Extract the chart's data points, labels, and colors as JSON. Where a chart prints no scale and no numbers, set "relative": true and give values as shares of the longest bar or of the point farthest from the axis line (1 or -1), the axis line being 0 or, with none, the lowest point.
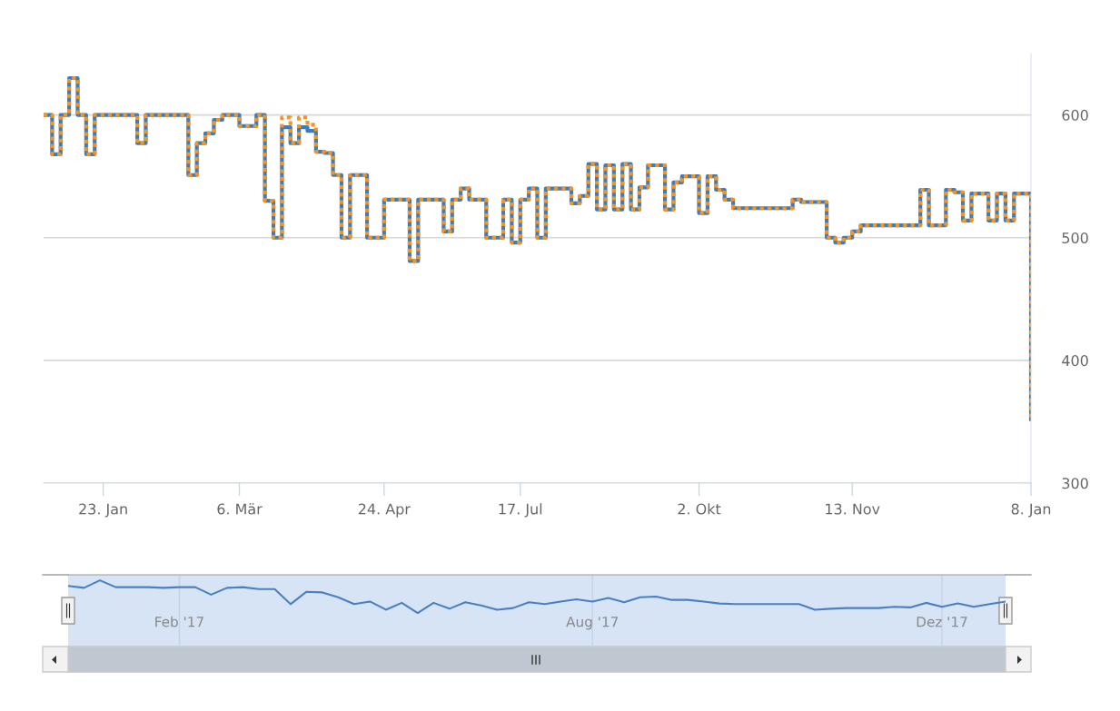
{
  "chart_data": [
    {
      "type": "step",
      "ylim": [
        300,
        650
      ],
      "yticks": [
        300,
        400,
        500,
        600
      ],
      "grid": "y",
      "categories": [
        null,
        null,
        null,
        null,
        null,
        null,
        null,
        "23. Jan",
        null,
        null,
        null,
        null,
        null,
        null,
        null,
        null,
        null,
        null,
        null,
        null,
        null,
        null,
        null,
        "6. Mär",
        null,
        null,
        null,
        null,
        null,
        null,
        null,
        null,
        null,
        null,
        null,
        null,
        null,
        null,
        null,
        null,
        "24. Apr",
        null,
        null,
        null,
        null,
        null,
        null,
        null,
        null,
        null,
        null,
        null,
        null,
        null,
        null,
        null,
        "17. Jul",
        null,
        null,
        null,
        null,
        null,
        null,
        null,
        null,
        null,
        null,
        null,
        null,
        null,
        null,
        null,
        null,
        null,
        null,
        null,
        null,
        "2. Okt",
        null,
        null,
        null,
        null,
        null,
        null,
        null,
        null,
        null,
        null,
        null,
        null,
        null,
        null,
        null,
        null,
        null,
        "13. Nov",
        null,
        null,
        null,
        null,
        null,
        null,
        null,
        null,
        null,
        null,
        null,
        null,
        null,
        null,
        null,
        null,
        null,
        null,
        null,
        null,
        "8. Jan"
      ],
      "series": [
        {
          "color": "#3a7ebf",
          "line_style": "solid",
          "values": [
            600,
            568,
            600,
            630,
            600,
            568,
            600,
            600,
            600,
            600,
            600,
            577,
            600,
            600,
            600,
            600,
            600,
            551,
            577,
            585,
            596,
            600,
            600,
            591,
            591,
            600,
            530,
            500,
            590,
            577,
            590,
            587,
            570,
            569,
            551,
            500,
            551,
            551,
            500,
            500,
            531,
            531,
            531,
            481,
            531,
            531,
            531,
            505,
            531,
            540,
            531,
            531,
            500,
            500,
            531,
            496,
            531,
            540,
            500,
            540,
            540,
            540,
            528,
            534,
            560,
            523,
            559,
            523,
            560,
            523,
            541,
            559,
            559,
            523,
            545,
            550,
            550,
            520,
            550,
            539,
            531,
            524,
            524,
            524,
            524,
            524,
            524,
            524,
            531,
            529,
            529,
            529,
            500,
            496,
            500,
            505,
            510,
            510,
            510,
            510,
            510,
            510,
            510,
            539,
            510,
            510,
            539,
            537,
            514,
            536,
            536,
            514,
            536,
            514,
            536,
            536,
            352
          ]
        },
        {
          "color": "#f7931e",
          "line_style": "dotted",
          "values": [
            600,
            568,
            600,
            630,
            600,
            568,
            600,
            600,
            600,
            600,
            600,
            577,
            600,
            600,
            600,
            600,
            600,
            551,
            577,
            585,
            596,
            600,
            600,
            591,
            591,
            600,
            530,
            500,
            598,
            577,
            598,
            592,
            570,
            569,
            551,
            500,
            551,
            551,
            500,
            500,
            531,
            531,
            531,
            481,
            531,
            531,
            531,
            505,
            531,
            540,
            531,
            531,
            500,
            500,
            531,
            496,
            531,
            540,
            500,
            540,
            540,
            540,
            528,
            534,
            560,
            523,
            559,
            523,
            560,
            523,
            541,
            559,
            559,
            523,
            545,
            550,
            550,
            520,
            550,
            539,
            531,
            524,
            524,
            524,
            524,
            524,
            524,
            524,
            531,
            529,
            529,
            529,
            500,
            496,
            500,
            505,
            510,
            510,
            510,
            510,
            510,
            510,
            510,
            539,
            510,
            510,
            539,
            537,
            514,
            536,
            536,
            514,
            536,
            514,
            536,
            536,
            352
          ]
        }
      ]
    },
    {
      "type": "line",
      "relative": true,
      "tick_labels": "x",
      "grid": "x",
      "categories": [
        null,
        null,
        null,
        null,
        null,
        null,
        null,
        "Feb '17",
        null,
        null,
        null,
        null,
        null,
        null,
        null,
        null,
        null,
        null,
        null,
        null,
        null,
        null,
        null,
        null,
        null,
        null,
        null,
        null,
        null,
        null,
        null,
        null,
        null,
        "Aug '17",
        null,
        null,
        null,
        null,
        null,
        null,
        null,
        null,
        null,
        null,
        null,
        null,
        null,
        null,
        null,
        null,
        null,
        null,
        null,
        null,
        null,
        "Dez '17",
        null,
        null,
        null,
        null
      ],
      "series": [
        {
          "color": "#4a7fc1",
          "values": [
            0.83,
            0.77,
            1,
            0.79,
            0.79,
            0.79,
            0.77,
            0.79,
            0.79,
            0.56,
            0.77,
            0.79,
            0.73,
            0.73,
            0.27,
            0.65,
            0.63,
            0.48,
            0.27,
            0.35,
            0.1,
            0.31,
            0,
            0.31,
            0.13,
            0.33,
            0.23,
            0.1,
            0.15,
            0.33,
            0.27,
            0.35,
            0.42,
            0.35,
            0.46,
            0.33,
            0.48,
            0.5,
            0.4,
            0.4,
            0.35,
            0.29,
            0.27,
            0.27,
            0.27,
            0.27,
            0.27,
            0.1,
            0.13,
            0.15,
            0.15,
            0.15,
            0.19,
            0.17,
            0.31,
            0.19,
            0.29,
            0.19,
            0.27,
            0.35
          ]
        }
      ]
    }
  ]
}
